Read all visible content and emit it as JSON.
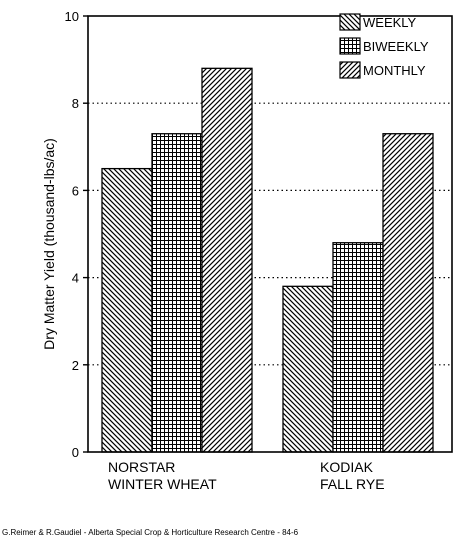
{
  "chart_data": {
    "type": "bar",
    "categories": [
      [
        "NORSTAR",
        "WINTER WHEAT"
      ],
      [
        "KODIAK",
        "FALL RYE"
      ]
    ],
    "series": [
      {
        "name": "WEEKLY",
        "values": [
          6.5,
          3.8
        ],
        "pattern": "diag-down"
      },
      {
        "name": "BIWEEKLY",
        "values": [
          7.3,
          4.8
        ],
        "pattern": "grid"
      },
      {
        "name": "MONTHLY",
        "values": [
          8.8,
          7.3
        ],
        "pattern": "diag-up"
      }
    ],
    "title": "",
    "xlabel": "",
    "ylabel": "Dry Matter Yield (thousand-lbs/ac)",
    "ylim": [
      0,
      10
    ],
    "yticks": [
      0,
      2,
      4,
      6,
      8,
      10
    ],
    "grid": "dotted-horizontal",
    "legend_position": "top-right",
    "colors": {
      "ink": "#000000",
      "background": "#ffffff"
    }
  },
  "credit": "G.Reimer & R.Gaudiel - Alberta Special Crop & Horticulture Research Centre - 84-6"
}
